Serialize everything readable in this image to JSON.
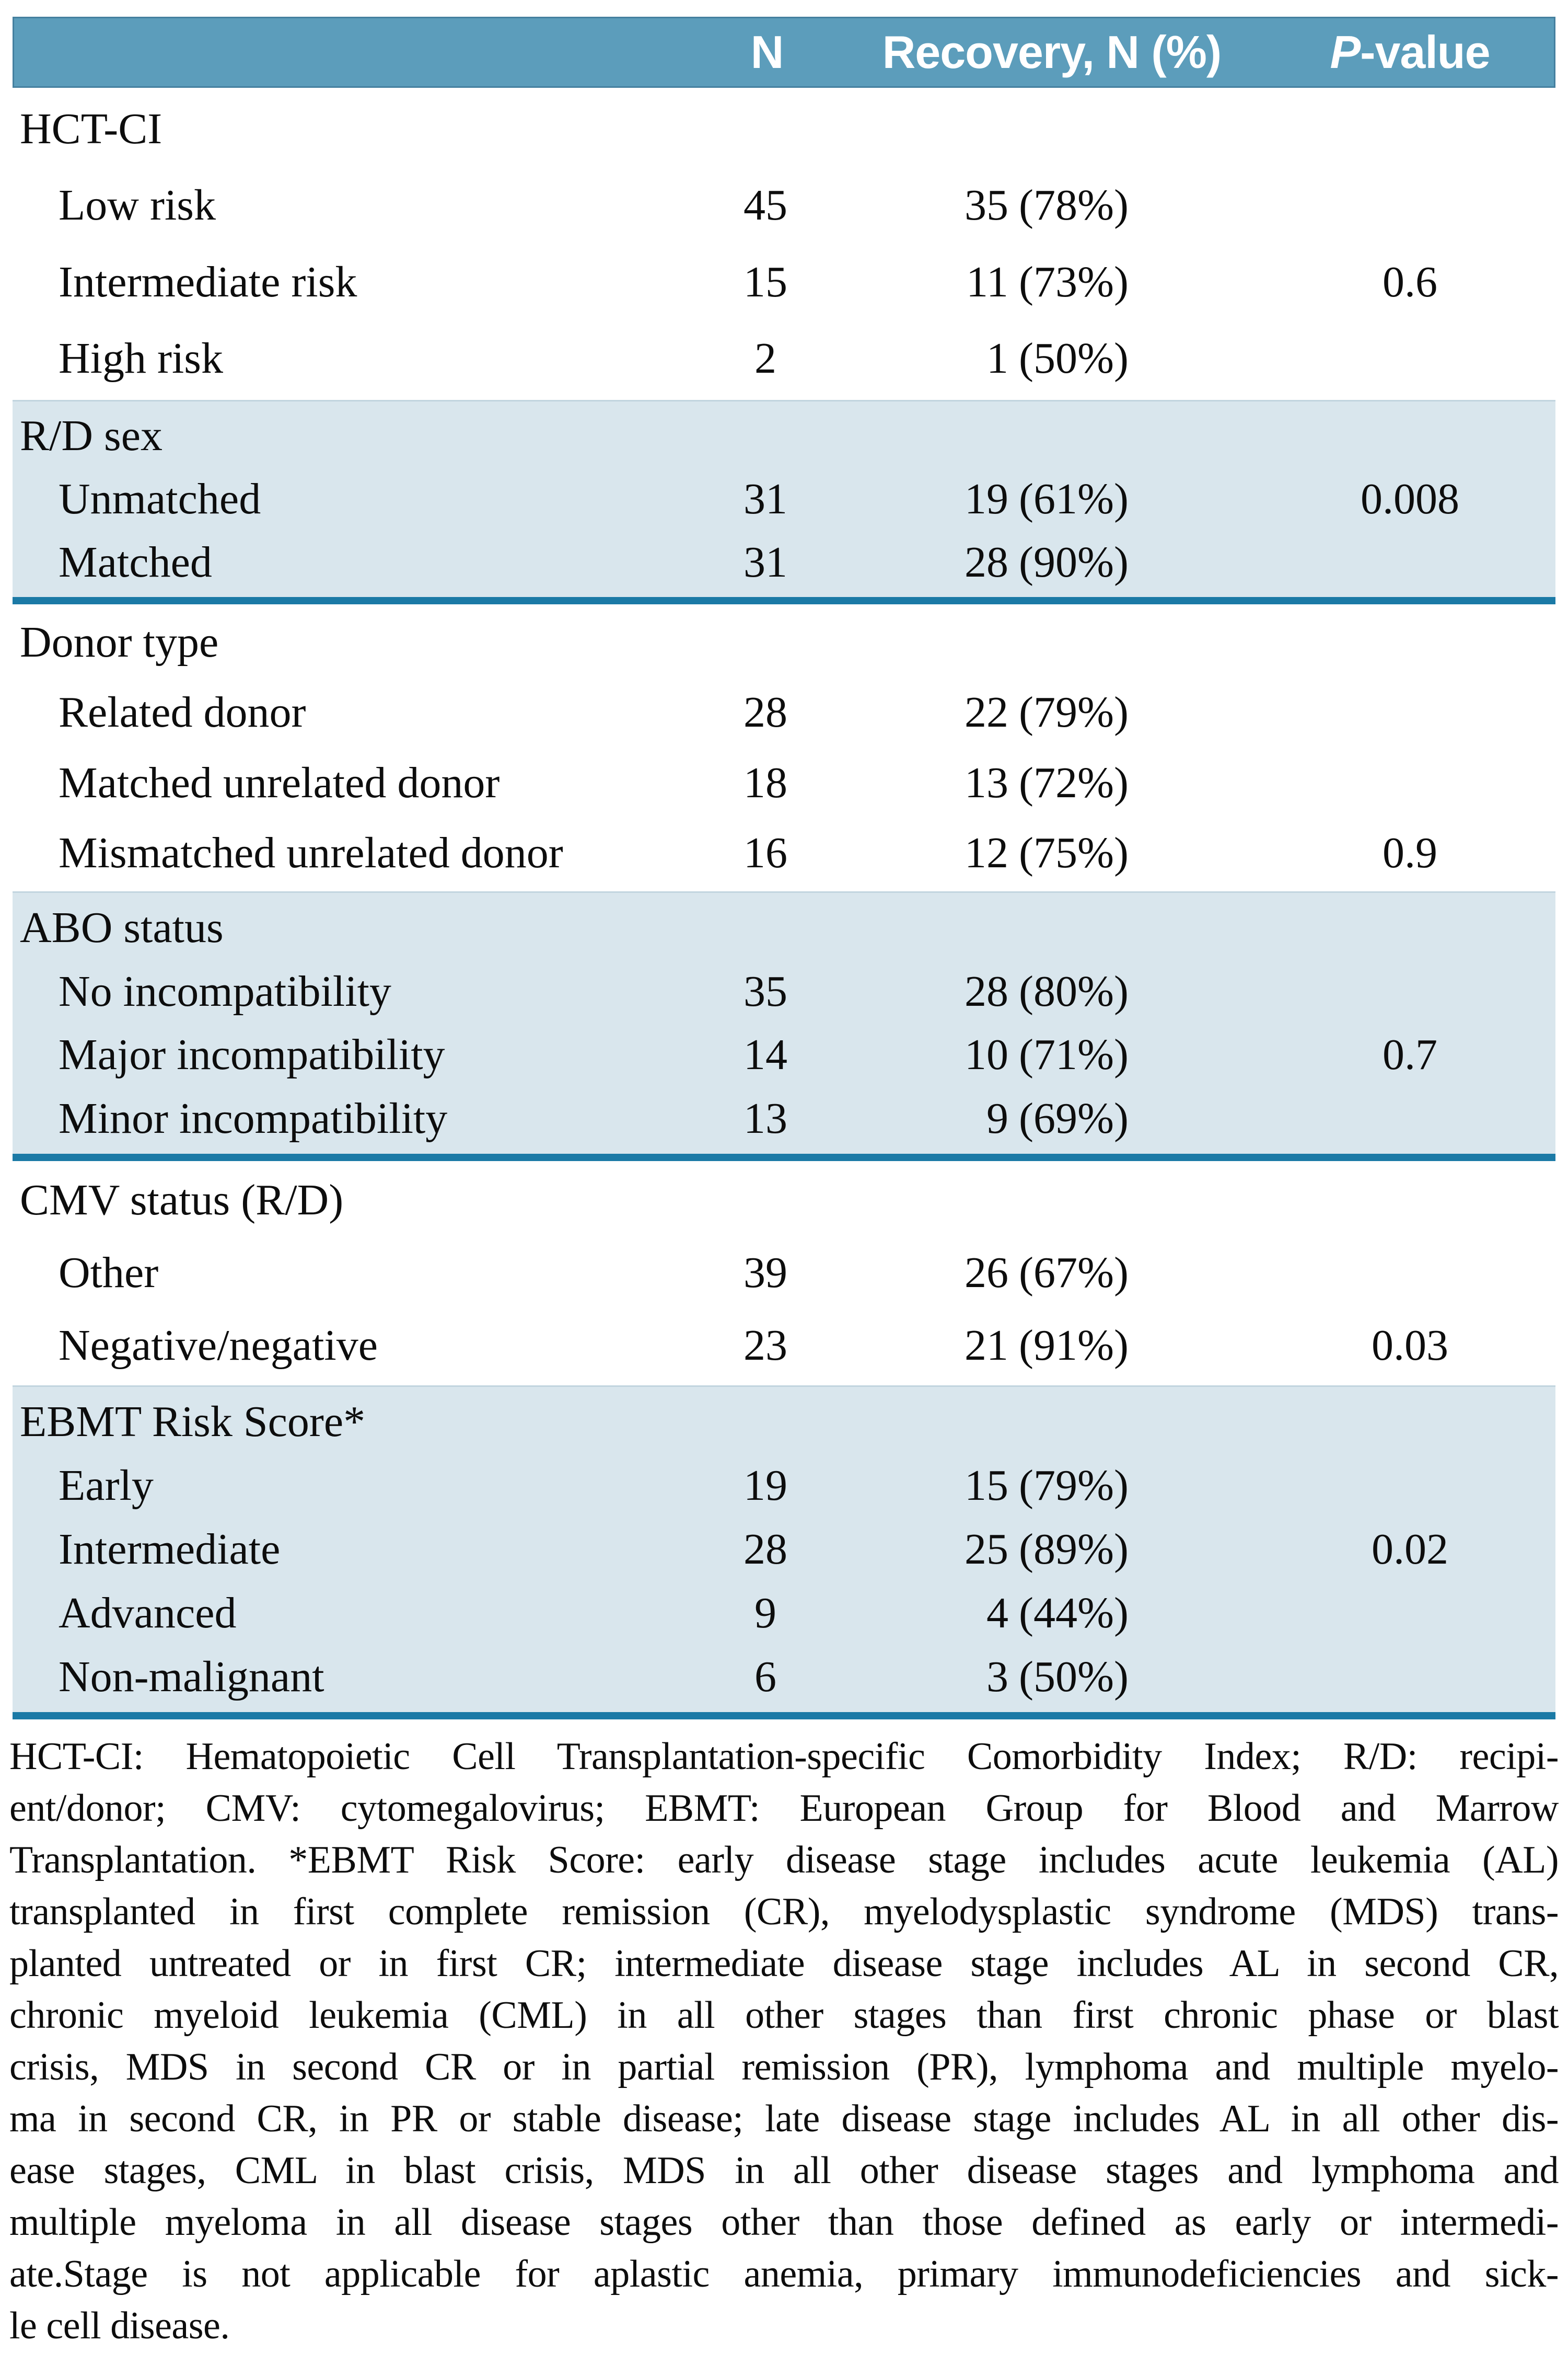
{
  "colors": {
    "header_bg": "#5c9dbb",
    "band_bg": "#d9e6ed",
    "rule": "#1b7aa6",
    "header_text": "#ffffff",
    "text": "#0d0d0d"
  },
  "table": {
    "header": {
      "n": "N",
      "recovery": "Recovery, N (%)",
      "pvalue": "P-value"
    },
    "groups": [
      {
        "label": "HCT-CI",
        "rows": [
          {
            "label": "Low risk",
            "n": "45",
            "recovery_count": "35",
            "recovery_pct": "(78%)",
            "p": ""
          },
          {
            "label": "Intermediate risk",
            "n": "15",
            "recovery_count": "11",
            "recovery_pct": "(73%)",
            "p": "0.6"
          },
          {
            "label": "High risk",
            "n": "2",
            "recovery_count": "1",
            "recovery_pct": "(50%)",
            "p": ""
          }
        ]
      },
      {
        "label": "R/D sex",
        "rows": [
          {
            "label": "Unmatched",
            "n": "31",
            "recovery_count": "19",
            "recovery_pct": "(61%)",
            "p": "0.008"
          },
          {
            "label": "Matched",
            "n": "31",
            "recovery_count": "28",
            "recovery_pct": "(90%)",
            "p": ""
          }
        ]
      },
      {
        "label": "Donor type",
        "rows": [
          {
            "label": "Related donor",
            "n": "28",
            "recovery_count": "22",
            "recovery_pct": "(79%)",
            "p": ""
          },
          {
            "label": "Matched unrelated donor",
            "n": "18",
            "recovery_count": "13",
            "recovery_pct": "(72%)",
            "p": ""
          },
          {
            "label": "Mismatched unrelated donor",
            "n": "16",
            "recovery_count": "12",
            "recovery_pct": "(75%)",
            "p": "0.9"
          }
        ]
      },
      {
        "label": "ABO status",
        "rows": [
          {
            "label": "No incompatibility",
            "n": "35",
            "recovery_count": "28",
            "recovery_pct": "(80%)",
            "p": ""
          },
          {
            "label": "Major incompatibility",
            "n": "14",
            "recovery_count": "10",
            "recovery_pct": "(71%)",
            "p": "0.7"
          },
          {
            "label": "Minor incompatibility",
            "n": "13",
            "recovery_count": "9",
            "recovery_pct": "(69%)",
            "p": ""
          }
        ]
      },
      {
        "label": "CMV status (R/D)",
        "rows": [
          {
            "label": "Other",
            "n": "39",
            "recovery_count": "26",
            "recovery_pct": "(67%)",
            "p": ""
          },
          {
            "label": "Negative/negative",
            "n": "23",
            "recovery_count": "21",
            "recovery_pct": "(91%)",
            "p": "0.03"
          }
        ]
      },
      {
        "label": "EBMT Risk Score*",
        "rows": [
          {
            "label": "Early",
            "n": "19",
            "recovery_count": "15",
            "recovery_pct": "(79%)",
            "p": ""
          },
          {
            "label": "Intermediate",
            "n": "28",
            "recovery_count": "25",
            "recovery_pct": "(89%)",
            "p": "0.02"
          },
          {
            "label": "Advanced",
            "n": "9",
            "recovery_count": "4",
            "recovery_pct": "(44%)",
            "p": ""
          },
          {
            "label": "Non-malignant",
            "n": "6",
            "recovery_count": "3",
            "recovery_pct": "(50%)",
            "p": ""
          }
        ]
      }
    ]
  },
  "footnote": {
    "lines": [
      "HCT-CI: Hematopoietic Cell Transplantation-specific Comorbidity Index; R/D: recipi-",
      "ent/donor; CMV: cytomegalovirus; EBMT: European Group for Blood and Marrow",
      "Transplantation. *EBMT Risk Score: early disease stage includes acute leukemia (AL)",
      "transplanted in first complete remission (CR), myelodysplastic syndrome (MDS) trans-",
      "planted untreated or in first CR; intermediate disease stage includes AL in second CR,",
      "chronic myeloid leukemia (CML) in all other stages than first chronic phase or blast",
      "crisis, MDS in second CR or in partial remission (PR), lymphoma and multiple myelo-",
      "ma in second CR, in PR or stable disease; late disease stage includes AL in all other dis-",
      "ease stages, CML in blast crisis, MDS in all other disease stages and lymphoma and",
      "multiple myeloma in all disease stages other than those defined as early or intermedi-",
      "ate.Stage is not applicable for aplastic anemia, primary immunodeficiencies and sick-",
      "le cell disease."
    ]
  }
}
